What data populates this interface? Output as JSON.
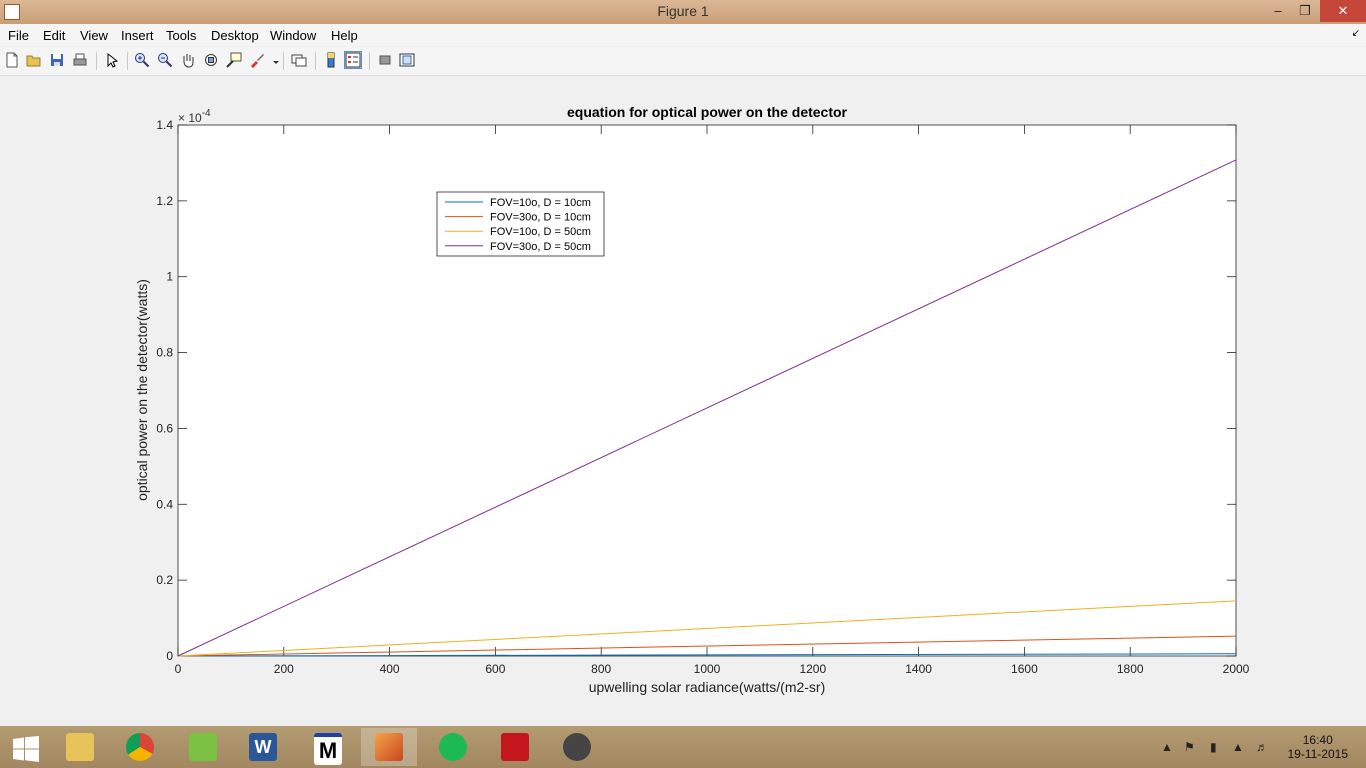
{
  "window": {
    "title": "Figure 1",
    "minimize": "–",
    "restore": "❐",
    "close": "✕"
  },
  "menu": [
    "File",
    "Edit",
    "View",
    "Insert",
    "Tools",
    "Desktop",
    "Window",
    "Help"
  ],
  "toolbar_icons": [
    "new-figure-icon",
    "open-file-icon",
    "save-icon",
    "print-icon",
    "edit-plot-arrow-icon",
    "zoom-in-icon",
    "zoom-out-icon",
    "pan-hand-icon",
    "rotate-3d-icon",
    "data-cursor-icon",
    "brush-icon",
    "link-plot-icon",
    "colorbar-icon",
    "legend-icon",
    "hide-plot-tools-icon",
    "show-plot-tools-icon"
  ],
  "chart_data": {
    "type": "line",
    "title": "equation for optical power on the detector",
    "xlabel": "upwelling solar radiance(watts/(m2-sr)",
    "ylabel": "optical power on the detector(watts)",
    "xlim": [
      0,
      2000
    ],
    "ylim": [
      0,
      1.4
    ],
    "y_exponent_label": "× 10",
    "y_exponent_power": "-4",
    "xticks": [
      "0",
      "200",
      "400",
      "600",
      "800",
      "1000",
      "1200",
      "1400",
      "1600",
      "1800",
      "2000"
    ],
    "yticks": [
      "0",
      "0.2",
      "0.4",
      "0.6",
      "0.8",
      "1",
      "1.2",
      "1.4"
    ],
    "grid": false,
    "legend_position": "upper-left-inside",
    "series": [
      {
        "name": "FOV=10o, D = 10cm",
        "color": "#0072BD",
        "x": [
          0,
          2000
        ],
        "y": [
          0,
          0.0058
        ]
      },
      {
        "name": "FOV=30o, D = 10cm",
        "color": "#D95319",
        "x": [
          0,
          2000
        ],
        "y": [
          0,
          0.0523
        ]
      },
      {
        "name": "FOV=10o, D = 50cm",
        "color": "#EDB120",
        "x": [
          0,
          2000
        ],
        "y": [
          0,
          0.1453
        ]
      },
      {
        "name": "FOV=30o, D = 50cm",
        "color": "#7E2F8E",
        "x": [
          0,
          2000
        ],
        "y": [
          0,
          1.3078
        ]
      }
    ]
  },
  "taskbar": {
    "apps": [
      {
        "name": "windows-start",
        "color": "#ffffff"
      },
      {
        "name": "file-explorer",
        "color": "#e8c35a"
      },
      {
        "name": "chrome",
        "color": "#db4437"
      },
      {
        "name": "notepad-plus",
        "color": "#7cc242"
      },
      {
        "name": "word",
        "color": "#2b579a"
      },
      {
        "name": "matlab-m",
        "color": "#1c1c1c"
      },
      {
        "name": "matlab",
        "color": "#e06c2c"
      },
      {
        "name": "spotify",
        "color": "#1db954"
      },
      {
        "name": "acrobat",
        "color": "#c4161c"
      },
      {
        "name": "app-drop",
        "color": "#444444"
      }
    ],
    "time": "16:40",
    "date": "19-11-2015"
  }
}
